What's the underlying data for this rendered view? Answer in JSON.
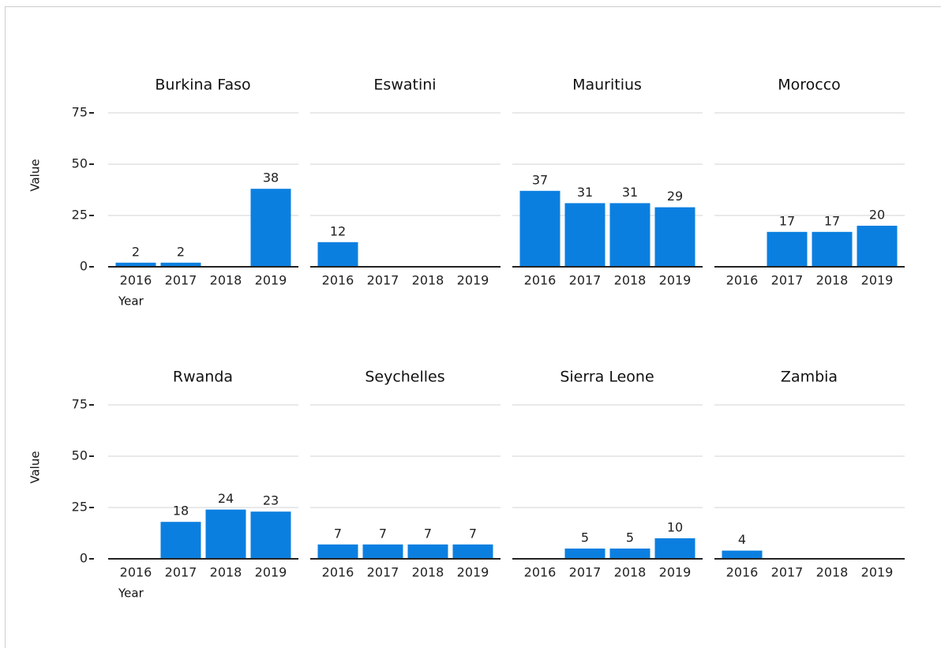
{
  "chart_data": [
    {
      "type": "bar",
      "title": "Burkina Faso",
      "ylabel": "Value",
      "xlabel": "Year",
      "tick_labels": true,
      "categories": [
        "2016",
        "2017",
        "2018",
        "2019"
      ],
      "values": [
        2,
        2,
        null,
        38
      ],
      "color": "#0b7fe0",
      "ylim": [
        0,
        75
      ],
      "yticks": [
        0,
        25,
        50,
        75
      ],
      "grid": true
    },
    {
      "type": "bar",
      "title": "Eswatini",
      "tick_labels": false,
      "categories": [
        "2016",
        "2017",
        "2018",
        "2019"
      ],
      "values": [
        12,
        null,
        null,
        null
      ],
      "color": "#0b7fe0",
      "ylim": [
        0,
        75
      ],
      "yticks": [
        0,
        25,
        50,
        75
      ],
      "grid": true
    },
    {
      "type": "bar",
      "title": "Mauritius",
      "tick_labels": false,
      "categories": [
        "2016",
        "2017",
        "2018",
        "2019"
      ],
      "values": [
        37,
        31,
        31,
        29
      ],
      "color": "#0b7fe0",
      "ylim": [
        0,
        75
      ],
      "yticks": [
        0,
        25,
        50,
        75
      ],
      "grid": true
    },
    {
      "type": "bar",
      "title": "Morocco",
      "tick_labels": false,
      "categories": [
        "2016",
        "2017",
        "2018",
        "2019"
      ],
      "values": [
        null,
        17,
        17,
        20
      ],
      "color": "#0b7fe0",
      "ylim": [
        0,
        75
      ],
      "yticks": [
        0,
        25,
        50,
        75
      ],
      "grid": true
    },
    {
      "type": "bar",
      "title": "Rwanda",
      "ylabel": "Value",
      "xlabel": "Year",
      "tick_labels": true,
      "categories": [
        "2016",
        "2017",
        "2018",
        "2019"
      ],
      "values": [
        null,
        18,
        24,
        23
      ],
      "color": "#0b7fe0",
      "ylim": [
        0,
        75
      ],
      "yticks": [
        0,
        25,
        50,
        75
      ],
      "grid": true
    },
    {
      "type": "bar",
      "title": "Seychelles",
      "tick_labels": false,
      "categories": [
        "2016",
        "2017",
        "2018",
        "2019"
      ],
      "values": [
        7,
        7,
        7,
        7
      ],
      "color": "#0b7fe0",
      "ylim": [
        0,
        75
      ],
      "yticks": [
        0,
        25,
        50,
        75
      ],
      "grid": true
    },
    {
      "type": "bar",
      "title": "Sierra Leone",
      "tick_labels": false,
      "categories": [
        "2016",
        "2017",
        "2018",
        "2019"
      ],
      "values": [
        null,
        5,
        5,
        10
      ],
      "color": "#0b7fe0",
      "ylim": [
        0,
        75
      ],
      "yticks": [
        0,
        25,
        50,
        75
      ],
      "grid": true
    },
    {
      "type": "bar",
      "title": "Zambia",
      "tick_labels": false,
      "categories": [
        "2016",
        "2017",
        "2018",
        "2019"
      ],
      "values": [
        4,
        null,
        null,
        null
      ],
      "color": "#0b7fe0",
      "ylim": [
        0,
        75
      ],
      "yticks": [
        0,
        25,
        50,
        75
      ],
      "grid": true
    }
  ]
}
